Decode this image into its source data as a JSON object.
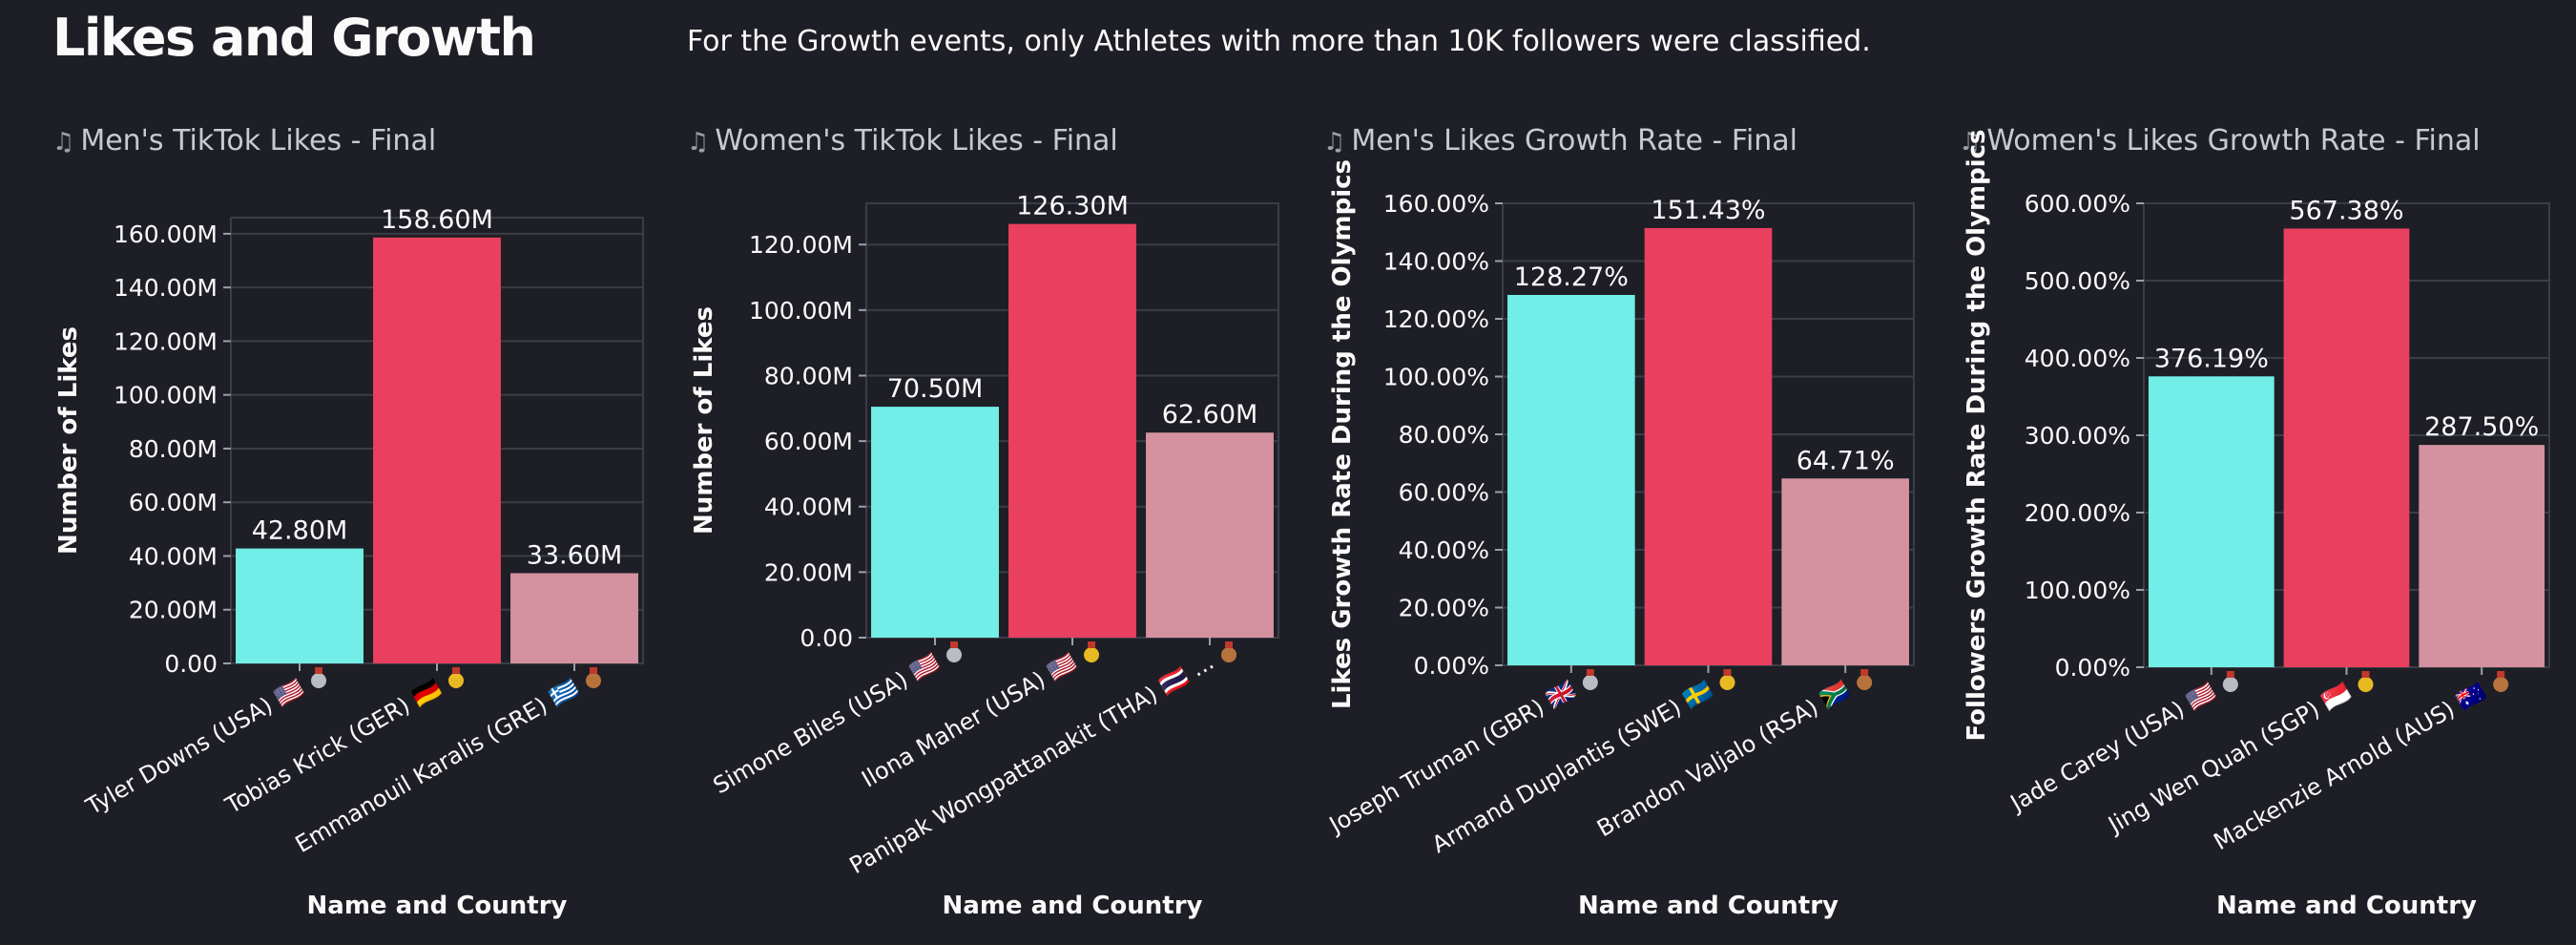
{
  "page": {
    "title": "Likes and Growth",
    "subtitle": "For the Growth events, only Athletes with more than 10K followers were classified.",
    "title_icon": "musical-note-icon"
  },
  "colors": {
    "background": "#1e1f26",
    "gold_bar": "#e8405e",
    "silver_bar": "#73ede8",
    "bronze_bar": "#d4919f",
    "grid": "#3b3d46",
    "text": "#fafafa"
  },
  "chart_data": [
    {
      "type": "bar",
      "title": "Men's TikTok Likes - Final",
      "xlabel": "Name and Country",
      "ylabel": "Number of Likes",
      "categories": [
        "Tyler Downs (USA)",
        "Tobias Krick (GER)",
        "Emmanouil Karalis (GRE)"
      ],
      "flags": [
        "🇺🇸",
        "🇩🇪",
        "🇬🇷"
      ],
      "medals": [
        "silver",
        "gold",
        "bronze"
      ],
      "values": [
        42.8,
        158.6,
        33.6
      ],
      "data_labels": [
        "42.80M",
        "158.60M",
        "33.60M"
      ],
      "yticks": [
        0,
        20,
        40,
        60,
        80,
        100,
        120,
        140,
        160
      ],
      "ytick_labels": [
        "0.00",
        "20.00M",
        "40.00M",
        "60.00M",
        "80.00M",
        "100.00M",
        "120.00M",
        "140.00M",
        "160.00M"
      ],
      "ylim": [
        0,
        166
      ],
      "grid": true
    },
    {
      "type": "bar",
      "title": "Women's TikTok Likes - Final",
      "xlabel": "Name and Country",
      "ylabel": "Number of Likes",
      "categories": [
        "Simone Biles (USA)",
        "Ilona Maher (USA)",
        "Panipak Wongpattanakit (THA)"
      ],
      "flags": [
        "🇺🇸",
        "🇺🇸",
        "🇹🇭"
      ],
      "medals": [
        "silver",
        "gold",
        "bronze"
      ],
      "label_suffix": [
        "",
        "",
        " ..."
      ],
      "values": [
        70.5,
        126.3,
        62.6
      ],
      "data_labels": [
        "70.50M",
        "126.30M",
        "62.60M"
      ],
      "yticks": [
        0,
        20,
        40,
        60,
        80,
        100,
        120
      ],
      "ytick_labels": [
        "0.00",
        "20.00M",
        "40.00M",
        "60.00M",
        "80.00M",
        "100.00M",
        "120.00M"
      ],
      "ylim": [
        0,
        132.6
      ],
      "grid": true
    },
    {
      "type": "bar",
      "title": "Men's Likes Growth Rate - Final",
      "xlabel": "Name and Country",
      "ylabel": "Likes Growth Rate During the Olympics",
      "categories": [
        "Joseph Truman (GBR)",
        "Armand Duplantis (SWE)",
        "Brandon Valjalo (RSA)"
      ],
      "flags": [
        "🇬🇧",
        "🇸🇪",
        "🇿🇦"
      ],
      "medals": [
        "silver",
        "gold",
        "bronze"
      ],
      "values": [
        128.27,
        151.43,
        64.71
      ],
      "data_labels": [
        "128.27%",
        "151.43%",
        "64.71%"
      ],
      "yticks": [
        0,
        20,
        40,
        60,
        80,
        100,
        120,
        140,
        160
      ],
      "ytick_labels": [
        "0.00%",
        "20.00%",
        "40.00%",
        "60.00%",
        "80.00%",
        "100.00%",
        "120.00%",
        "140.00%",
        "160.00%"
      ],
      "ylim": [
        0,
        160
      ],
      "grid": true
    },
    {
      "type": "bar",
      "title": "Women's Likes Growth Rate - Final",
      "xlabel": "Name and Country",
      "ylabel": "Followers Growth Rate During the Olympics",
      "categories": [
        "Jade Carey (USA)",
        "Jing Wen Quah (SGP)",
        "Mackenzie Arnold (AUS)"
      ],
      "flags": [
        "🇺🇸",
        "🇸🇬",
        "🇦🇺"
      ],
      "medals": [
        "silver",
        "gold",
        "bronze"
      ],
      "values": [
        376.19,
        567.38,
        287.5
      ],
      "data_labels": [
        "376.19%",
        "567.38%",
        "287.50%"
      ],
      "yticks": [
        0,
        100,
        200,
        300,
        400,
        500,
        600
      ],
      "ytick_labels": [
        "0.00%",
        "100.00%",
        "200.00%",
        "300.00%",
        "400.00%",
        "500.00%",
        "600.00%"
      ],
      "ylim": [
        0,
        600
      ],
      "grid": true
    }
  ]
}
